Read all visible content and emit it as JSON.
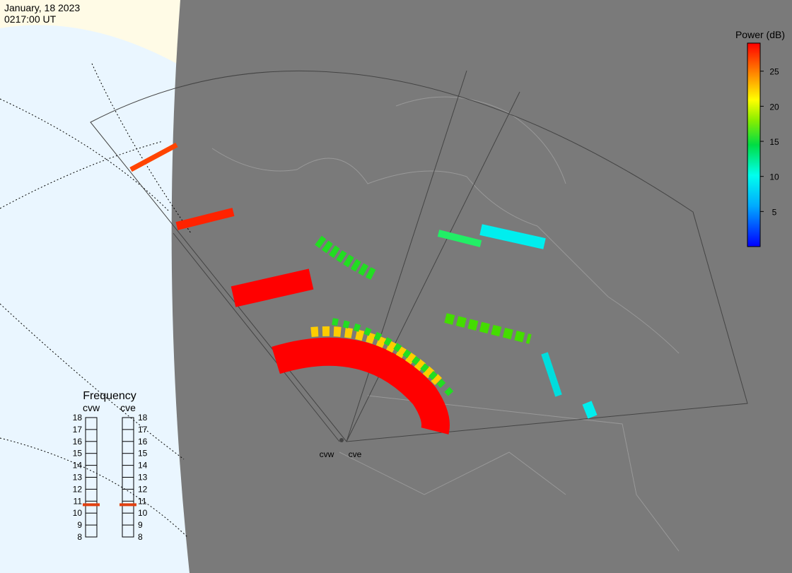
{
  "header": {
    "date": "January, 18 2023",
    "time": "0217:00 UT"
  },
  "colorbar": {
    "title": "Power (dB)",
    "lim": [
      0,
      29
    ],
    "ticks": [
      5,
      10,
      15,
      20,
      25
    ]
  },
  "frequency": {
    "title": "Frequency",
    "lim": [
      8,
      18
    ],
    "ticks": [
      8,
      9,
      10,
      11,
      12,
      13,
      14,
      15,
      16,
      17,
      18
    ],
    "radars": [
      {
        "name": "cvw",
        "value": 10.7
      },
      {
        "name": "cve",
        "value": 10.7
      }
    ]
  },
  "stations": [
    "cvw",
    "cve"
  ]
}
